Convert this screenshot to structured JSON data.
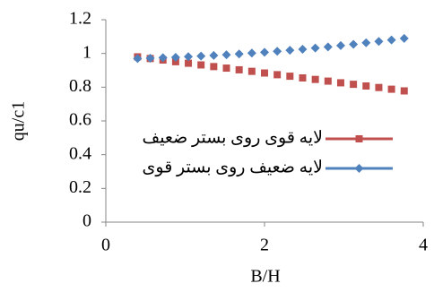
{
  "chart_data": {
    "type": "scatter",
    "x_label": "B/H",
    "y_label": "qu/c1",
    "xlim": [
      0,
      4
    ],
    "xticks": [
      0,
      2,
      4
    ],
    "ylim": [
      0,
      1.2
    ],
    "yticks": [
      0,
      0.2,
      0.4,
      0.6,
      0.8,
      1,
      1.2
    ],
    "grid": false,
    "legend": "right",
    "x": [
      0.4,
      0.56,
      0.72,
      0.88,
      1.04,
      1.2,
      1.36,
      1.52,
      1.68,
      1.84,
      2,
      2.16,
      2.32,
      2.48,
      2.64,
      2.8,
      2.96,
      3.12,
      3.28,
      3.44,
      3.6,
      3.76
    ],
    "series": [
      {
        "name": "لایه قوی روی بستر ضعیف",
        "color": "#c0504d",
        "marker": "square",
        "values": [
          0.98,
          0.97,
          0.961,
          0.951,
          0.942,
          0.932,
          0.922,
          0.913,
          0.903,
          0.894,
          0.884,
          0.874,
          0.865,
          0.855,
          0.846,
          0.836,
          0.826,
          0.817,
          0.807,
          0.798,
          0.788,
          0.778
        ]
      },
      {
        "name": "لایه ضعیف روی بستر قوی",
        "color": "#4f81bd",
        "marker": "diamond",
        "values": [
          0.97,
          0.972,
          0.975,
          0.977,
          0.981,
          0.984,
          0.988,
          0.992,
          0.997,
          1.002,
          1.007,
          1.013,
          1.019,
          1.025,
          1.032,
          1.039,
          1.047,
          1.054,
          1.063,
          1.071,
          1.08,
          1.089
        ]
      }
    ]
  }
}
